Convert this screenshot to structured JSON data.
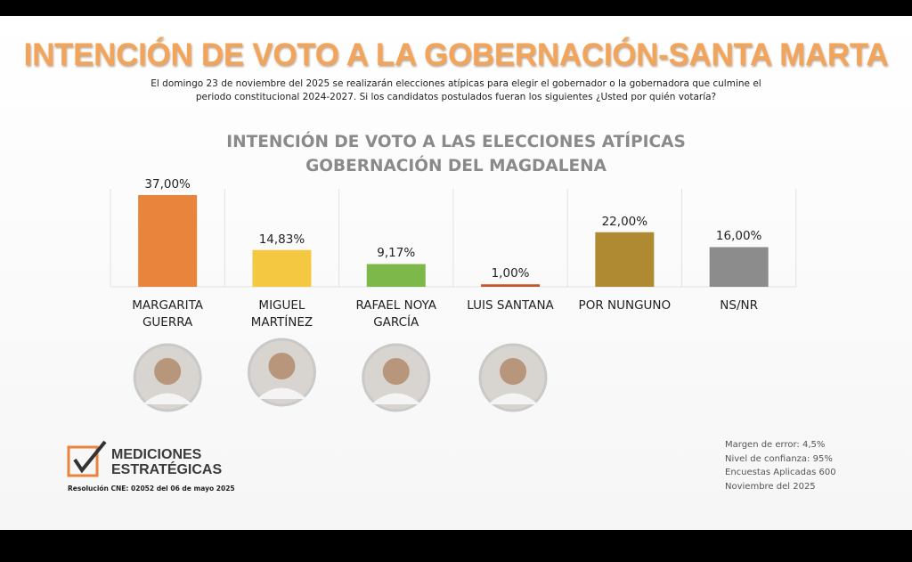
{
  "header": {
    "title": "INTENCIÓN DE VOTO A LA GOBERNACIÓN-SANTA MARTA",
    "subtitle": "El domingo 23 de noviembre del 2025 se realizarán elecciones atípicas para elegir el gobernador o la gobernadora que culmine el periodo constitucional 2024-2027. Si los candidatos postulados fueran los siguientes ¿Usted por quién votaría?"
  },
  "chart_data": {
    "type": "bar",
    "title": "INTENCIÓN DE VOTO A LAS ELECCIONES ATÍPICAS\nGOBERNACIÓN DEL MAGDALENA",
    "categories": [
      "MARGARITA\nGUERRA",
      "MIGUEL\nMARTÍNEZ",
      "RAFAEL NOYA\nGARCÍA",
      "LUIS SANTANA",
      "POR NUNGUNO",
      "NS/NR"
    ],
    "values": [
      37,
      14.83,
      9.17,
      1,
      22,
      16
    ],
    "value_labels": [
      "37,00%",
      "14,83%",
      "9,17%",
      "1,00%",
      "22,00%",
      "16,00%"
    ],
    "colors": [
      "#e9843c",
      "#f5c842",
      "#7cb84a",
      "#c4562c",
      "#b08a32",
      "#8c8c8c"
    ]
  },
  "logo": {
    "name": "MEDICIONES\nESTRATÉGICAS",
    "resolution": "Resolución CNE: 02052 del 06 de mayo 2025"
  },
  "notes": [
    "Margen de error: 4,5%",
    "Nivel de confianza: 95%",
    "Encuestas Aplicadas 600",
    "Noviembre del 2025"
  ]
}
